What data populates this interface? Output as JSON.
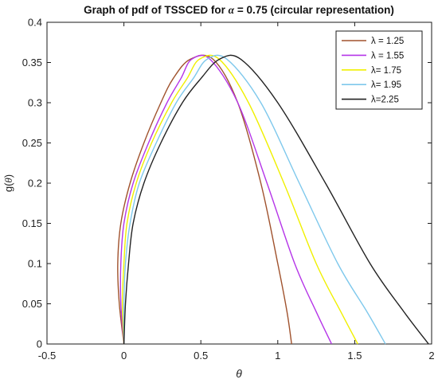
{
  "chart_data": {
    "type": "line",
    "title_prefix": "Graph of pdf of TSSCED  for ",
    "title_symbol": "α",
    "title_suffix": " = 0.75 (circular representation)",
    "xlabel": "θ",
    "ylabel_prefix": "g(",
    "ylabel_symbol": "θ",
    "ylabel_suffix": ")",
    "xlim": [
      -0.5,
      2
    ],
    "ylim": [
      0,
      0.4
    ],
    "xticks": [
      -0.5,
      0,
      0.5,
      1,
      1.5,
      2
    ],
    "xtick_labels": [
      "-0.5",
      "0",
      "0.5",
      "1",
      "1.5",
      "2"
    ],
    "yticks": [
      0,
      0.05,
      0.1,
      0.15,
      0.2,
      0.25,
      0.3,
      0.35,
      0.4
    ],
    "ytick_labels": [
      "0",
      "0.05",
      "0.1",
      "0.15",
      "0.2",
      "0.25",
      "0.3",
      "0.35",
      "0.4"
    ],
    "grid": false,
    "legend_position": "top-right",
    "series": [
      {
        "name": "λ = 1.25",
        "color": "#a0522d",
        "x": [
          0,
          -0.03,
          -0.04,
          -0.02,
          0.04,
          0.13,
          0.24,
          0.32,
          0.43,
          0.58,
          0.74,
          0.89,
          1.0,
          1.06,
          1.09
        ],
        "y": [
          0,
          0.05,
          0.1,
          0.15,
          0.2,
          0.25,
          0.3,
          0.33,
          0.354,
          0.354,
          0.3,
          0.2,
          0.1,
          0.04,
          0
        ]
      },
      {
        "name": "λ = 1.55",
        "color": "#b535e8",
        "x": [
          0,
          -0.02,
          -0.02,
          0.0,
          0.06,
          0.16,
          0.28,
          0.37,
          0.44,
          0.56,
          0.74,
          0.93,
          1.11,
          1.25,
          1.35
        ],
        "y": [
          0,
          0.05,
          0.1,
          0.15,
          0.2,
          0.25,
          0.3,
          0.33,
          0.354,
          0.354,
          0.3,
          0.2,
          0.1,
          0.04,
          0
        ]
      },
      {
        "name": "λ= 1.75",
        "color": "#f0f000",
        "x": [
          0,
          -0.01,
          0.0,
          0.02,
          0.08,
          0.18,
          0.31,
          0.41,
          0.49,
          0.62,
          0.81,
          1.04,
          1.25,
          1.41,
          1.52
        ],
        "y": [
          0,
          0.05,
          0.1,
          0.15,
          0.2,
          0.25,
          0.3,
          0.33,
          0.354,
          0.354,
          0.3,
          0.2,
          0.1,
          0.04,
          0
        ]
      },
      {
        "name": "λ= 1.95",
        "color": "#7ec8ec",
        "x": [
          0,
          0.0,
          0.01,
          0.04,
          0.1,
          0.21,
          0.34,
          0.45,
          0.54,
          0.67,
          0.89,
          1.14,
          1.39,
          1.58,
          1.7
        ],
        "y": [
          0,
          0.05,
          0.1,
          0.15,
          0.2,
          0.25,
          0.3,
          0.33,
          0.354,
          0.354,
          0.3,
          0.2,
          0.1,
          0.04,
          0
        ]
      },
      {
        "name": "λ=2.25",
        "color": "#222222",
        "x": [
          0,
          0.01,
          0.03,
          0.06,
          0.13,
          0.24,
          0.38,
          0.5,
          0.62,
          0.76,
          1.0,
          1.31,
          1.6,
          1.82,
          1.98
        ],
        "y": [
          0,
          0.05,
          0.1,
          0.15,
          0.2,
          0.25,
          0.3,
          0.33,
          0.354,
          0.354,
          0.3,
          0.2,
          0.1,
          0.04,
          0
        ]
      }
    ]
  }
}
